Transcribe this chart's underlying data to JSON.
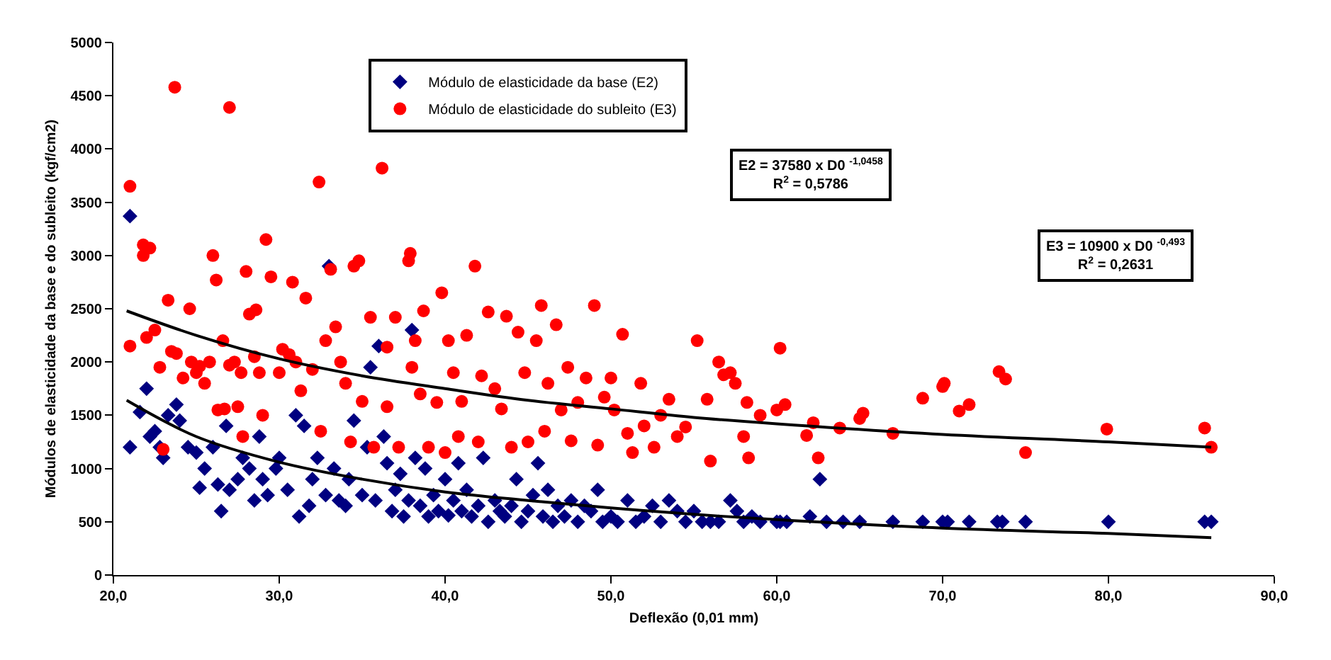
{
  "chart_data": {
    "type": "scatter",
    "xlabel": "Deflexão (0,01 mm)",
    "ylabel": "Módulos de elasticidade da base e do subleito (kgf/cm2)",
    "xlim": [
      20,
      90
    ],
    "xticks": [
      {
        "value": 20,
        "label": "20,0"
      },
      {
        "value": 30,
        "label": "30,0"
      },
      {
        "value": 40,
        "label": "40,0"
      },
      {
        "value": 50,
        "label": "50,0"
      },
      {
        "value": 60,
        "label": "60,0"
      },
      {
        "value": 70,
        "label": "70,0"
      },
      {
        "value": 80,
        "label": "80,0"
      },
      {
        "value": 90,
        "label": "90,0"
      }
    ],
    "ylim": [
      0,
      5000
    ],
    "yticks": [
      0,
      500,
      1000,
      1500,
      2000,
      2500,
      3000,
      3500,
      4000,
      4500,
      5000
    ],
    "legend": "top",
    "annotations": [
      "E2 = 37580 x D0 $^{-1,0458}$\nR$^{2}$ = 0,5786",
      "E3 = 10900 x D0 $^{-0,493}$\nR$^{2}$ = 0,2631"
    ],
    "series": [
      {
        "name": "Módulo de elasticidade da base (E2)",
        "color": "#000080",
        "marker": "diamond",
        "x": [
          21.0,
          21.0,
          21.6,
          22.0,
          22.2,
          22.5,
          22.8,
          23.0,
          23.3,
          23.8,
          24.0,
          24.5,
          25.0,
          25.2,
          25.5,
          26.0,
          26.3,
          26.5,
          26.8,
          27.0,
          27.5,
          27.8,
          28.2,
          28.5,
          28.8,
          29.0,
          29.3,
          29.8,
          30.0,
          30.5,
          31.0,
          31.2,
          31.5,
          31.8,
          32.0,
          32.3,
          32.8,
          33.0,
          33.3,
          33.6,
          34.0,
          34.2,
          34.5,
          35.0,
          35.3,
          35.5,
          35.8,
          36.0,
          36.3,
          36.5,
          36.8,
          37.0,
          37.3,
          37.5,
          37.8,
          38.0,
          38.2,
          38.5,
          38.8,
          39.0,
          39.3,
          39.6,
          40.0,
          40.2,
          40.5,
          40.8,
          41.0,
          41.3,
          41.6,
          42.0,
          42.3,
          42.6,
          43.0,
          43.3,
          43.6,
          44.0,
          44.3,
          44.6,
          45.0,
          45.3,
          45.6,
          45.9,
          46.2,
          46.5,
          46.8,
          47.2,
          47.6,
          48.0,
          48.4,
          48.8,
          49.2,
          49.5,
          50.0,
          50.4,
          51.0,
          51.5,
          52.0,
          52.5,
          53.0,
          53.5,
          54.0,
          54.5,
          55.0,
          55.5,
          56.0,
          56.5,
          57.2,
          57.6,
          58.0,
          58.5,
          59.0,
          60.0,
          60.2,
          60.6,
          62.0,
          62.6,
          63.0,
          64.0,
          65.0,
          67.0,
          68.8,
          70.0,
          70.3,
          71.6,
          73.3,
          73.6,
          75.0,
          80.0,
          85.8,
          86.2
        ],
        "values": [
          3370,
          1200,
          1530,
          1750,
          1300,
          1350,
          1200,
          1100,
          1500,
          1600,
          1450,
          1200,
          1150,
          820,
          1000,
          1200,
          850,
          600,
          1400,
          800,
          900,
          1100,
          1000,
          700,
          1300,
          900,
          750,
          1000,
          1100,
          800,
          1500,
          550,
          1400,
          650,
          900,
          1100,
          750,
          2900,
          1000,
          700,
          650,
          900,
          1450,
          750,
          1200,
          1950,
          700,
          2150,
          1300,
          1050,
          600,
          800,
          950,
          550,
          700,
          2300,
          1100,
          650,
          1000,
          550,
          750,
          600,
          900,
          560,
          700,
          1050,
          600,
          800,
          550,
          650,
          1100,
          500,
          700,
          600,
          550,
          650,
          900,
          500,
          600,
          750,
          1050,
          550,
          800,
          500,
          650,
          550,
          700,
          500,
          650,
          600,
          800,
          500,
          550,
          500,
          700,
          500,
          550,
          650,
          500,
          700,
          600,
          500,
          600,
          500,
          500,
          500,
          700,
          600,
          500,
          550,
          500,
          500,
          500,
          500,
          550,
          900,
          500,
          500,
          500,
          500,
          500,
          500,
          500,
          500,
          500,
          500,
          500,
          500,
          500,
          500
        ]
      },
      {
        "name": "Módulo de elasticidade do subleito (E3)",
        "color": "#ff0000",
        "marker": "circle",
        "x": [
          21.0,
          21.0,
          21.8,
          21.8,
          22.2,
          22.0,
          22.5,
          22.8,
          23.0,
          23.3,
          23.5,
          23.7,
          23.8,
          24.2,
          24.7,
          24.6,
          25.0,
          25.2,
          25.5,
          25.8,
          26.0,
          26.2,
          26.3,
          26.6,
          26.7,
          27.0,
          27.0,
          27.3,
          27.5,
          27.7,
          27.8,
          28.0,
          28.2,
          28.5,
          28.6,
          28.8,
          29.2,
          29.0,
          29.5,
          30.0,
          30.2,
          30.6,
          30.8,
          31.0,
          31.3,
          31.6,
          32.0,
          32.4,
          32.5,
          32.8,
          33.1,
          33.4,
          33.7,
          34.0,
          34.3,
          34.5,
          34.8,
          35.0,
          35.5,
          35.7,
          36.2,
          36.5,
          36.5,
          37.0,
          37.2,
          37.8,
          37.9,
          38.2,
          38.0,
          38.5,
          38.7,
          39.0,
          39.5,
          39.8,
          40.0,
          40.2,
          40.5,
          40.8,
          41.0,
          41.3,
          41.8,
          42.0,
          42.2,
          42.6,
          43.0,
          43.4,
          43.7,
          44.0,
          44.4,
          44.8,
          45.0,
          45.5,
          45.8,
          46.0,
          46.2,
          46.7,
          47.0,
          47.4,
          47.6,
          48.0,
          48.5,
          49.0,
          49.2,
          49.6,
          50.0,
          50.2,
          50.7,
          51.0,
          51.3,
          51.8,
          52.0,
          52.6,
          53.0,
          53.5,
          54.0,
          54.5,
          55.2,
          55.8,
          56.0,
          56.5,
          56.8,
          57.2,
          57.5,
          58.0,
          58.2,
          58.3,
          59.0,
          60.0,
          60.2,
          60.5,
          61.8,
          62.2,
          62.5,
          63.8,
          65.0,
          65.2,
          67.0,
          68.8,
          70.0,
          70.1,
          71.0,
          71.6,
          73.4,
          73.8,
          75.0,
          79.9,
          85.8,
          86.2
        ],
        "values": [
          3650,
          2150,
          3000,
          3100,
          3070,
          2230,
          2300,
          1950,
          1180,
          2580,
          2100,
          4580,
          2080,
          1850,
          2000,
          2500,
          1900,
          1960,
          1800,
          2000,
          3000,
          2770,
          1550,
          2200,
          1560,
          4390,
          1970,
          2000,
          1580,
          1900,
          1300,
          2850,
          2450,
          2050,
          2490,
          1900,
          3150,
          1500,
          2800,
          1900,
          2120,
          2070,
          2750,
          2000,
          1730,
          2600,
          1930,
          3690,
          1350,
          2200,
          2870,
          2330,
          2000,
          1800,
          1250,
          2900,
          2950,
          1630,
          2420,
          1200,
          3820,
          2140,
          1580,
          2420,
          1200,
          2950,
          3020,
          2200,
          1950,
          1700,
          2480,
          1200,
          1620,
          2650,
          1150,
          2200,
          1900,
          1300,
          1630,
          2250,
          2900,
          1250,
          1870,
          2470,
          1750,
          1560,
          2430,
          1200,
          2280,
          1900,
          1250,
          2200,
          2530,
          1350,
          1800,
          2350,
          1550,
          1950,
          1260,
          1620,
          1850,
          2530,
          1220,
          1670,
          1850,
          1550,
          2260,
          1330,
          1150,
          1800,
          1400,
          1200,
          1500,
          1650,
          1300,
          1390,
          2200,
          1650,
          1070,
          2000,
          1880,
          1900,
          1800,
          1300,
          1620,
          1100,
          1500,
          1550,
          2130,
          1600,
          1310,
          1430,
          1100,
          1380,
          1470,
          1520,
          1330,
          1660,
          1770,
          1800,
          1540,
          1600,
          1910,
          1840,
          1150,
          1370,
          1380,
          1200
        ]
      },
      {
        "type": "line",
        "color": "#000000",
        "line_style": "solid",
        "x": [
          20.8,
          25,
          30,
          35,
          40,
          45,
          50,
          55,
          60,
          70,
          80,
          86.2
        ],
        "values": [
          1640,
          1300,
          1060,
          900,
          780,
          700,
          630,
          570,
          520,
          440,
          390,
          350
        ]
      },
      {
        "type": "line",
        "color": "#000000",
        "line_style": "solid",
        "x": [
          20.8,
          25,
          30,
          35,
          40,
          45,
          50,
          55,
          60,
          70,
          80,
          86.2
        ],
        "values": [
          2480,
          2250,
          2030,
          1870,
          1750,
          1640,
          1560,
          1480,
          1420,
          1320,
          1250,
          1200
        ]
      }
    ]
  }
}
